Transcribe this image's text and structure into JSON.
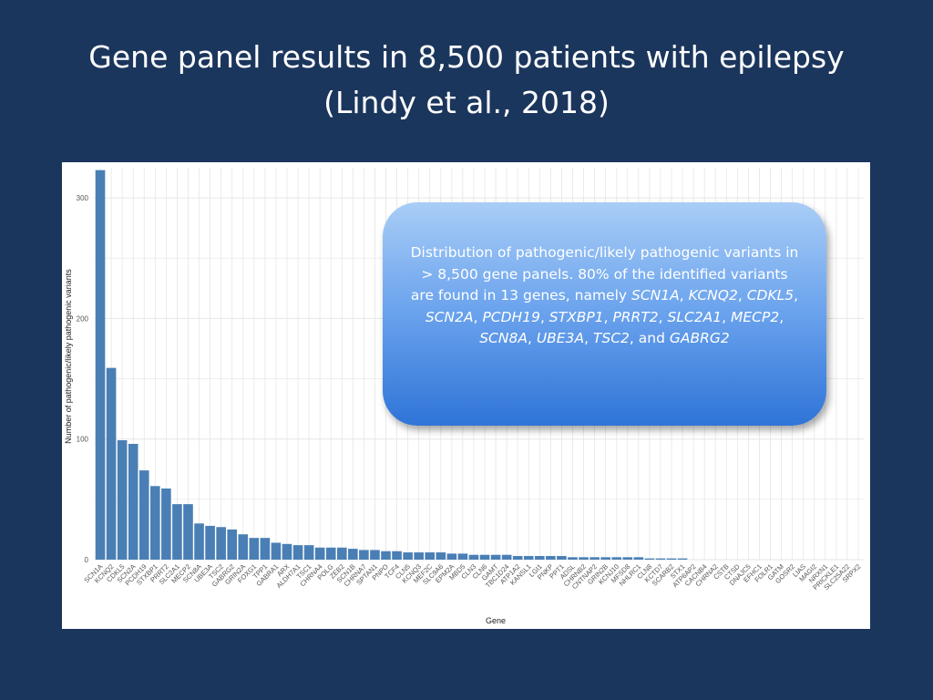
{
  "slide": {
    "title_line1": "Gene panel results in 8,500 patients with epilepsy",
    "title_line2": "(Lindy et al., 2018)"
  },
  "callout": {
    "intro": "Distribution of pathogenic/likely pathogenic variants in > 8,500 gene panels. 80% of the identified variants are found in 13 genes, namely",
    "genes": [
      "SCN1A",
      "KCNQ2",
      "CDKL5",
      "SCN2A",
      "PCDH19",
      "STXBP1",
      "PRRT2",
      "SLC2A1",
      "MECP2",
      "SCN8A",
      "UBE3A",
      "TSC2",
      "GABRG2"
    ],
    "conjunction": "and"
  },
  "colors": {
    "background": "#1b365d",
    "bar": "#4a7fb5",
    "panel": "#ffffff",
    "grid": "#e6e6e6"
  },
  "chart_data": {
    "type": "bar",
    "title": "",
    "xlabel": "Gene",
    "ylabel": "Number of pathogenic/likely pathogenic variants",
    "ylim": [
      0,
      325
    ],
    "yticks": [
      0,
      100,
      200,
      300
    ],
    "grid": true,
    "categories": [
      "SCN1A",
      "KCNQ2",
      "CDKL5",
      "SCN2A",
      "PCDH19",
      "STXBP1",
      "PRRT2",
      "SLC2A1",
      "MECP2",
      "SCN8A",
      "UBE3A",
      "TSC2",
      "GABRG2",
      "GRIN2A",
      "FOXG1",
      "TPP1",
      "GABRA1",
      "ARX",
      "ALDH7A1",
      "TSC1",
      "CHRNA4",
      "POLG",
      "ZEB2",
      "SCN1B",
      "CHRNA7",
      "SPTAN1",
      "PNPO",
      "TCF4",
      "CLN5",
      "KCNQ3",
      "MEF2C",
      "SLC9A6",
      "EPM2A",
      "MBD5",
      "CLN3",
      "CLN6",
      "GAMT",
      "TBC1D24",
      "ATP1A2",
      "KANSL1",
      "LGI1",
      "PNKP",
      "PPT1",
      "ADSL",
      "CHRNB2",
      "CNTNAP2",
      "GRIN2B",
      "KCNJ10",
      "MFSD8",
      "NHLRC1",
      "CLN8",
      "KCTD7",
      "SCARB2",
      "STX1",
      "ATP6AP2",
      "CACNB4",
      "CHRNA2",
      "CSTB",
      "CTSD",
      "DNAJC5",
      "EFHC1",
      "FOLR1",
      "GATM",
      "GOSR2",
      "LIAS",
      "MAGI2",
      "NRXN1",
      "PRICKLE1",
      "SLC25A22",
      "SRPX2"
    ],
    "values": [
      323,
      159,
      99,
      96,
      74,
      61,
      59,
      46,
      46,
      30,
      28,
      27,
      25,
      21,
      18,
      18,
      14,
      13,
      12,
      12,
      10,
      10,
      10,
      9,
      8,
      8,
      7,
      7,
      6,
      6,
      6,
      6,
      5,
      5,
      4,
      4,
      4,
      4,
      3,
      3,
      3,
      3,
      3,
      2,
      2,
      2,
      2,
      2,
      2,
      2,
      1,
      1,
      1,
      1,
      0,
      0,
      0,
      0,
      0,
      0,
      0,
      0,
      0,
      0,
      0,
      0,
      0,
      0,
      0,
      0
    ]
  }
}
